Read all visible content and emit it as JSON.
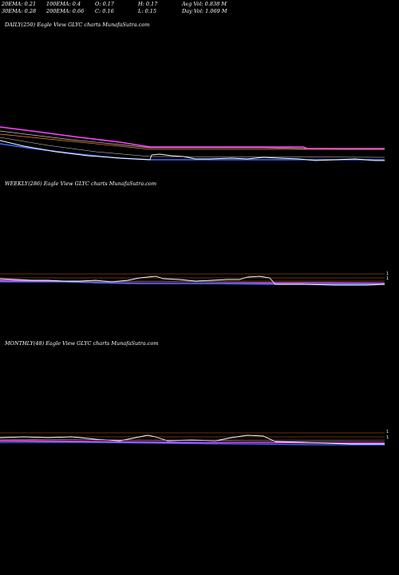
{
  "stats": {
    "ema20": "20EMA: 0.21",
    "ema30": "30EMA: 0.28",
    "ema100": "100EMA: 0.4",
    "ema200": "200EMA: 0.66",
    "open": "O: 0.17",
    "close": "C: 0.16",
    "high": "H: 0.17",
    "low": "L: 0.15",
    "avg_vol": "Avg Vol: 0.838 M",
    "day_vol": "Day Vol: 1.069 M"
  },
  "panels": {
    "daily": {
      "label": "DAILY(250) Eagle  View  GLYC charts MunafaSutra.com"
    },
    "weekly": {
      "label": "WEEKLY(286) Eagle  View  GLYC charts MunafaSutra.com"
    },
    "monthly": {
      "label": "MONTHLY(48) Eagle  View  GLYC charts MunafaSutra.com"
    }
  },
  "colors": {
    "background": "#000000",
    "price": "#ffffff",
    "ema_fast": "#3b6cff",
    "ema_slow": "#ff44ff",
    "ema_mid": "#ff8c1a",
    "ema_long": "#cccccc",
    "grid_orange": "#c86414"
  },
  "chart_data": [
    {
      "type": "line",
      "panel": "daily",
      "title": "DAILY(250) Eagle  View  GLYC charts MunafaSutra.com",
      "series": [
        {
          "name": "price",
          "values": [
            0.62,
            0.6,
            0.58,
            0.55,
            0.52,
            0.49,
            0.46,
            0.44,
            0.42,
            0.4,
            0.38,
            0.36,
            0.34,
            0.32,
            0.3,
            0.28,
            0.26,
            0.3,
            0.28,
            0.26,
            0.24,
            0.22,
            0.21,
            0.2,
            0.19,
            0.18,
            0.17,
            0.17,
            0.16,
            0.16
          ]
        },
        {
          "name": "ema_200",
          "values": [
            0.95,
            0.93,
            0.91,
            0.89,
            0.87,
            0.85,
            0.83,
            0.81,
            0.79,
            0.77,
            0.75,
            0.73,
            0.71,
            0.7,
            0.68,
            0.67,
            0.66,
            0.66,
            0.66,
            0.66,
            0.66,
            0.66,
            0.66,
            0.66,
            0.66,
            0.66,
            0.66,
            0.66,
            0.66,
            0.66
          ]
        },
        {
          "name": "ema_100",
          "values": [
            0.8,
            0.77,
            0.74,
            0.71,
            0.68,
            0.65,
            0.62,
            0.59,
            0.56,
            0.53,
            0.5,
            0.48,
            0.46,
            0.44,
            0.42,
            0.4,
            0.4,
            0.4,
            0.4,
            0.4,
            0.4,
            0.4,
            0.4,
            0.4,
            0.4,
            0.4,
            0.4,
            0.4,
            0.4,
            0.4
          ]
        }
      ]
    },
    {
      "type": "line",
      "panel": "weekly",
      "title": "WEEKLY(286) Eagle  View  GLYC charts MunafaSutra.com"
    },
    {
      "type": "line",
      "panel": "monthly",
      "title": "MONTHLY(48) Eagle  View  GLYC charts MunafaSutra.com"
    }
  ]
}
